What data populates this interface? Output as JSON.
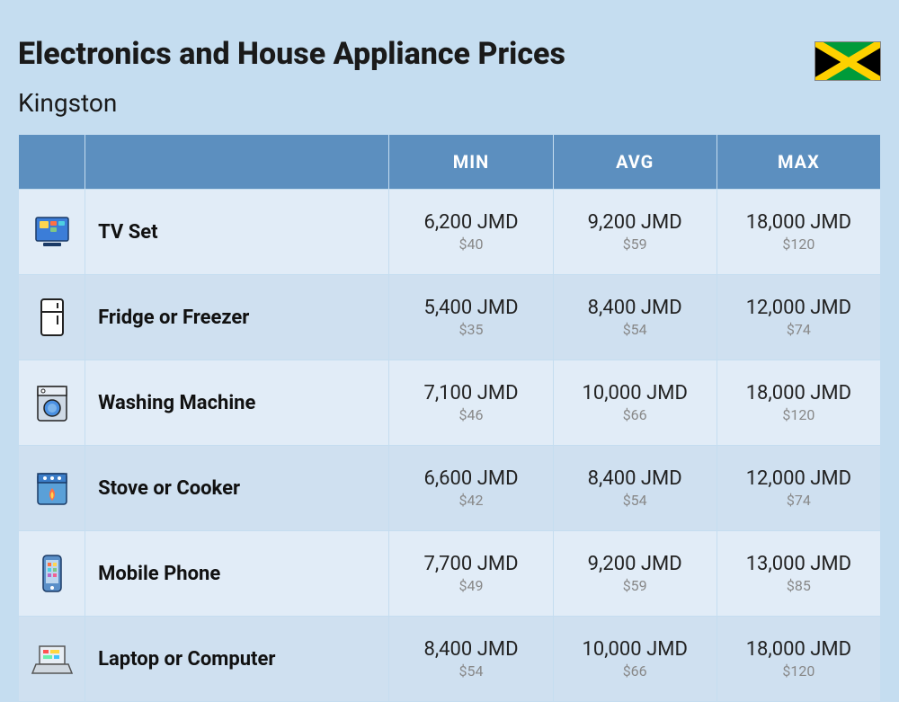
{
  "header": {
    "title": "Electronics and House Appliance Prices",
    "city": "Kingston",
    "flag": {
      "saltire_color": "#fed100",
      "triangle_color_lr": "#000000",
      "triangle_color_tb": "#009b3a"
    }
  },
  "table": {
    "columns": [
      "MIN",
      "AVG",
      "MAX"
    ],
    "header_bg": "#5c8fbf",
    "header_fg": "#ffffff",
    "row_even_bg": "#e1ecf7",
    "row_odd_bg": "#cfe0f0",
    "price_main_color": "#222222",
    "price_sub_color": "#888888",
    "name_fontsize": 22,
    "price_fontsize": 22,
    "sub_fontsize": 16,
    "rows": [
      {
        "icon": "tv-icon",
        "name": "TV Set",
        "min": {
          "jmd": "6,200 JMD",
          "usd": "$40"
        },
        "avg": {
          "jmd": "9,200 JMD",
          "usd": "$59"
        },
        "max": {
          "jmd": "18,000 JMD",
          "usd": "$120"
        }
      },
      {
        "icon": "fridge-icon",
        "name": "Fridge or Freezer",
        "min": {
          "jmd": "5,400 JMD",
          "usd": "$35"
        },
        "avg": {
          "jmd": "8,400 JMD",
          "usd": "$54"
        },
        "max": {
          "jmd": "12,000 JMD",
          "usd": "$74"
        }
      },
      {
        "icon": "washer-icon",
        "name": "Washing Machine",
        "min": {
          "jmd": "7,100 JMD",
          "usd": "$46"
        },
        "avg": {
          "jmd": "10,000 JMD",
          "usd": "$66"
        },
        "max": {
          "jmd": "18,000 JMD",
          "usd": "$120"
        }
      },
      {
        "icon": "stove-icon",
        "name": "Stove or Cooker",
        "min": {
          "jmd": "6,600 JMD",
          "usd": "$42"
        },
        "avg": {
          "jmd": "8,400 JMD",
          "usd": "$54"
        },
        "max": {
          "jmd": "12,000 JMD",
          "usd": "$74"
        }
      },
      {
        "icon": "phone-icon",
        "name": "Mobile Phone",
        "min": {
          "jmd": "7,700 JMD",
          "usd": "$49"
        },
        "avg": {
          "jmd": "9,200 JMD",
          "usd": "$59"
        },
        "max": {
          "jmd": "13,000 JMD",
          "usd": "$85"
        }
      },
      {
        "icon": "laptop-icon",
        "name": "Laptop or Computer",
        "min": {
          "jmd": "8,400 JMD",
          "usd": "$54"
        },
        "avg": {
          "jmd": "10,000 JMD",
          "usd": "$66"
        },
        "max": {
          "jmd": "18,000 JMD",
          "usd": "$120"
        }
      }
    ]
  },
  "background_color": "#c5ddf0"
}
